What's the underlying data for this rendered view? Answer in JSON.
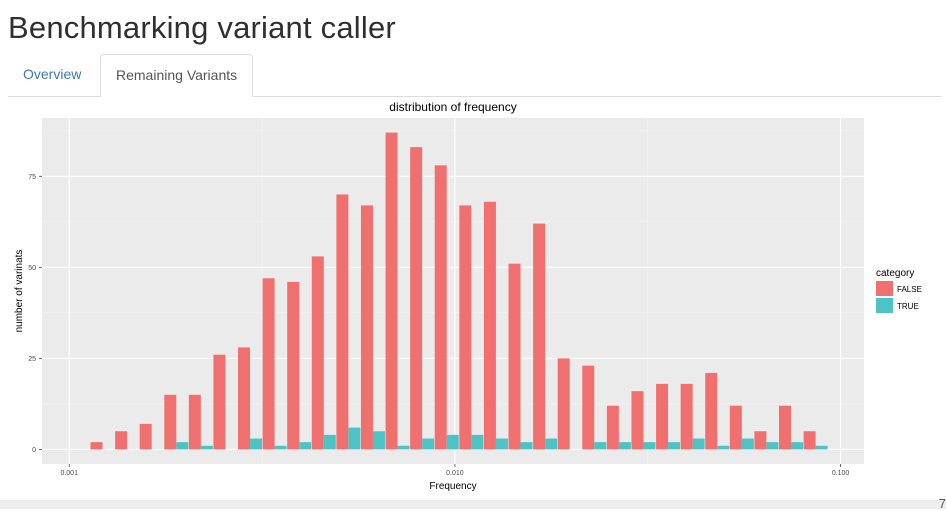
{
  "page": {
    "title": "Benchmarking variant caller"
  },
  "tabs": [
    {
      "label": "Overview",
      "active": false
    },
    {
      "label": "Remaining Variants",
      "active": true
    }
  ],
  "footer": {
    "corner_text": "7"
  },
  "colors": {
    "false_series": "#f07070",
    "true_series": "#4ec3c6",
    "panel": "#ebebeb"
  },
  "chart_data": {
    "type": "bar",
    "title": "distribution of frequency",
    "xlabel": "Frequency",
    "ylabel": "number of varinats",
    "x_scale": "log10",
    "xlim": [
      0.00085,
      0.115
    ],
    "ylim": [
      -4,
      91
    ],
    "x_ticks": [
      {
        "value": 0.001,
        "label": "0.001"
      },
      {
        "value": 0.01,
        "label": "0.010"
      },
      {
        "value": 0.1,
        "label": "0.100"
      }
    ],
    "y_ticks": [
      {
        "value": 0,
        "label": "0"
      },
      {
        "value": 25,
        "label": "25"
      },
      {
        "value": 50,
        "label": "50"
      },
      {
        "value": 75,
        "label": "75"
      }
    ],
    "grid": true,
    "legend": {
      "title": "category",
      "position": "right"
    },
    "bin_centers": [
      0.00122,
      0.001413,
      0.001636,
      0.001895,
      0.002194,
      0.002541,
      0.002943,
      0.003408,
      0.003947,
      0.004571,
      0.005294,
      0.006131,
      0.007101,
      0.008224,
      0.009524,
      0.01103,
      0.012774,
      0.014794,
      0.017134,
      0.019843,
      0.022981,
      0.026615,
      0.030824,
      0.035698,
      0.041343,
      0.04788,
      0.055452,
      0.064221,
      0.074376,
      0.086137
    ],
    "series": [
      {
        "name": "FALSE",
        "values": [
          2,
          5,
          7,
          15,
          15,
          26,
          28,
          47,
          46,
          53,
          70,
          67,
          87,
          83,
          78,
          67,
          68,
          51,
          62,
          25,
          23,
          12,
          16,
          18,
          18,
          21,
          12,
          5,
          12,
          5
        ]
      },
      {
        "name": "TRUE",
        "values": [
          0,
          0,
          0,
          2,
          1,
          0,
          3,
          1,
          2,
          4,
          6,
          5,
          1,
          3,
          4,
          4,
          3,
          2,
          3,
          0,
          2,
          2,
          2,
          2,
          3,
          1,
          3,
          2,
          2,
          1
        ]
      }
    ]
  }
}
